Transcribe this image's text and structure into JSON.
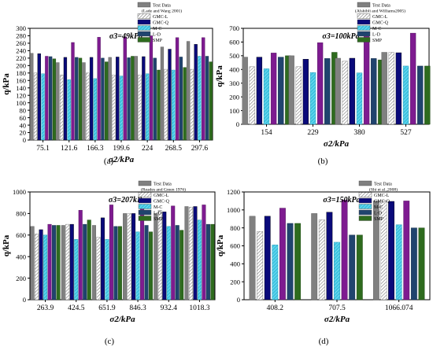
{
  "colors": {
    "test": "#808080",
    "gmc_l": "#ffffff",
    "gmc_q": "#0a0a7a",
    "m_c": "#5fd8ee",
    "l_d": "#20446e",
    "smp": "#2e6b1e",
    "purple": "#7e1b90"
  },
  "chart_data": [
    {
      "type": "bar",
      "panel_label": "(a)",
      "title": "σ3=49kPa",
      "ylabel": "q/kPa",
      "xlabel": "σ2/kPa",
      "ylim": [
        0,
        300
      ],
      "yticks": [
        0,
        20,
        40,
        60,
        80,
        100,
        120,
        140,
        160,
        180,
        200,
        220,
        240,
        260,
        280,
        300
      ],
      "categories": [
        "75.1",
        "121.6",
        "166.3",
        "199.6",
        "224",
        "268.5",
        "297.6"
      ],
      "legend_note": "(Lade and Wang 2001)",
      "series": [
        {
          "name": "Test Data",
          "values": [
            233,
            208,
            208,
            222,
            225,
            250,
            265
          ]
        },
        {
          "name": "GMC-L",
          "values": [
            180,
            175,
            180,
            175,
            175,
            190,
            190
          ]
        },
        {
          "name": "GMC-Q",
          "values": [
            232,
            222,
            222,
            223,
            224,
            244,
            257
          ]
        },
        {
          "name": "M-C",
          "values": [
            178,
            162,
            165,
            172,
            178,
            188,
            225
          ]
        },
        {
          "name": "",
          "values": [
            225,
            262,
            276,
            277,
            280,
            275,
            275
          ]
        },
        {
          "name": "L-D",
          "values": [
            224,
            222,
            220,
            221,
            220,
            223,
            225
          ]
        },
        {
          "name": "SMP",
          "values": [
            218,
            220,
            210,
            225,
            188,
            195,
            210
          ]
        }
      ]
    },
    {
      "type": "bar",
      "panel_label": "(b)",
      "title": "σ3=100kPa",
      "ylabel": "q/kPa",
      "xlabel": "σ2/kPa",
      "ylim": [
        0,
        700
      ],
      "yticks": [
        0,
        100,
        200,
        300,
        400,
        500,
        600,
        700
      ],
      "categories": [
        "154",
        "229",
        "380",
        "527"
      ],
      "legend_note": "(Alshibli and Williams2005)",
      "series": [
        {
          "name": "Test Data",
          "values": [
            490,
            500,
            482,
            525
          ]
        },
        {
          "name": "GMC-L",
          "values": [
            420,
            420,
            460,
            525
          ]
        },
        {
          "name": "GMC-Q",
          "values": [
            490,
            475,
            482,
            522
          ]
        },
        {
          "name": "M-C",
          "values": [
            405,
            378,
            375,
            425
          ]
        },
        {
          "name": "",
          "values": [
            520,
            595,
            660,
            665
          ]
        },
        {
          "name": "L-D",
          "values": [
            490,
            480,
            480,
            425
          ]
        },
        {
          "name": "SMP",
          "values": [
            500,
            525,
            470,
            425
          ]
        }
      ]
    },
    {
      "type": "bar",
      "panel_label": "(c)",
      "title": "σ3=207kPa",
      "ylabel": "q/kPa",
      "xlabel": "σ2/kPa",
      "ylim": [
        0,
        1000
      ],
      "yticks": [
        0,
        200,
        400,
        600,
        800,
        1000
      ],
      "categories": [
        "263.9",
        "424.5",
        "651.9",
        "846.3",
        "932.4",
        "1018.3"
      ],
      "legend_note": "(Reades and Green 1976)",
      "series": [
        {
          "name": "Test Data",
          "values": [
            680,
            690,
            690,
            800,
            800,
            865
          ]
        },
        {
          "name": "GMC-L",
          "values": [
            610,
            700,
            580,
            800,
            830,
            860
          ]
        },
        {
          "name": "GMC-Q",
          "values": [
            650,
            700,
            760,
            800,
            815,
            865
          ]
        },
        {
          "name": "M-C",
          "values": [
            600,
            560,
            560,
            630,
            680,
            740
          ]
        },
        {
          "name": "",
          "values": [
            700,
            830,
            880,
            880,
            870,
            880
          ]
        },
        {
          "name": "L-D",
          "values": [
            690,
            700,
            680,
            690,
            690,
            700
          ]
        },
        {
          "name": "SMP",
          "values": [
            690,
            740,
            680,
            630,
            645,
            700
          ]
        }
      ]
    },
    {
      "type": "bar",
      "panel_label": "(d)",
      "title": "σ3=150kPa",
      "ylabel": "q/kPa",
      "xlabel": "σ2/kPa",
      "ylim": [
        0,
        1200
      ],
      "yticks": [
        0,
        200,
        400,
        600,
        800,
        1000,
        1200
      ],
      "categories": [
        "408.2",
        "707.5",
        "1066.074"
      ],
      "legend_note": "(Shi et al.,2008)",
      "series": [
        {
          "name": "Test Data",
          "values": [
            930,
            960,
            1100
          ]
        },
        {
          "name": "GMC-L",
          "values": [
            760,
            890,
            1100
          ]
        },
        {
          "name": "GMC-Q",
          "values": [
            930,
            975,
            1095
          ]
        },
        {
          "name": "M-C",
          "values": [
            610,
            640,
            835
          ]
        },
        {
          "name": "",
          "values": [
            1020,
            1110,
            1100
          ]
        },
        {
          "name": "L-D",
          "values": [
            850,
            720,
            800
          ]
        },
        {
          "name": "SMP",
          "values": [
            850,
            720,
            800
          ]
        }
      ]
    }
  ]
}
